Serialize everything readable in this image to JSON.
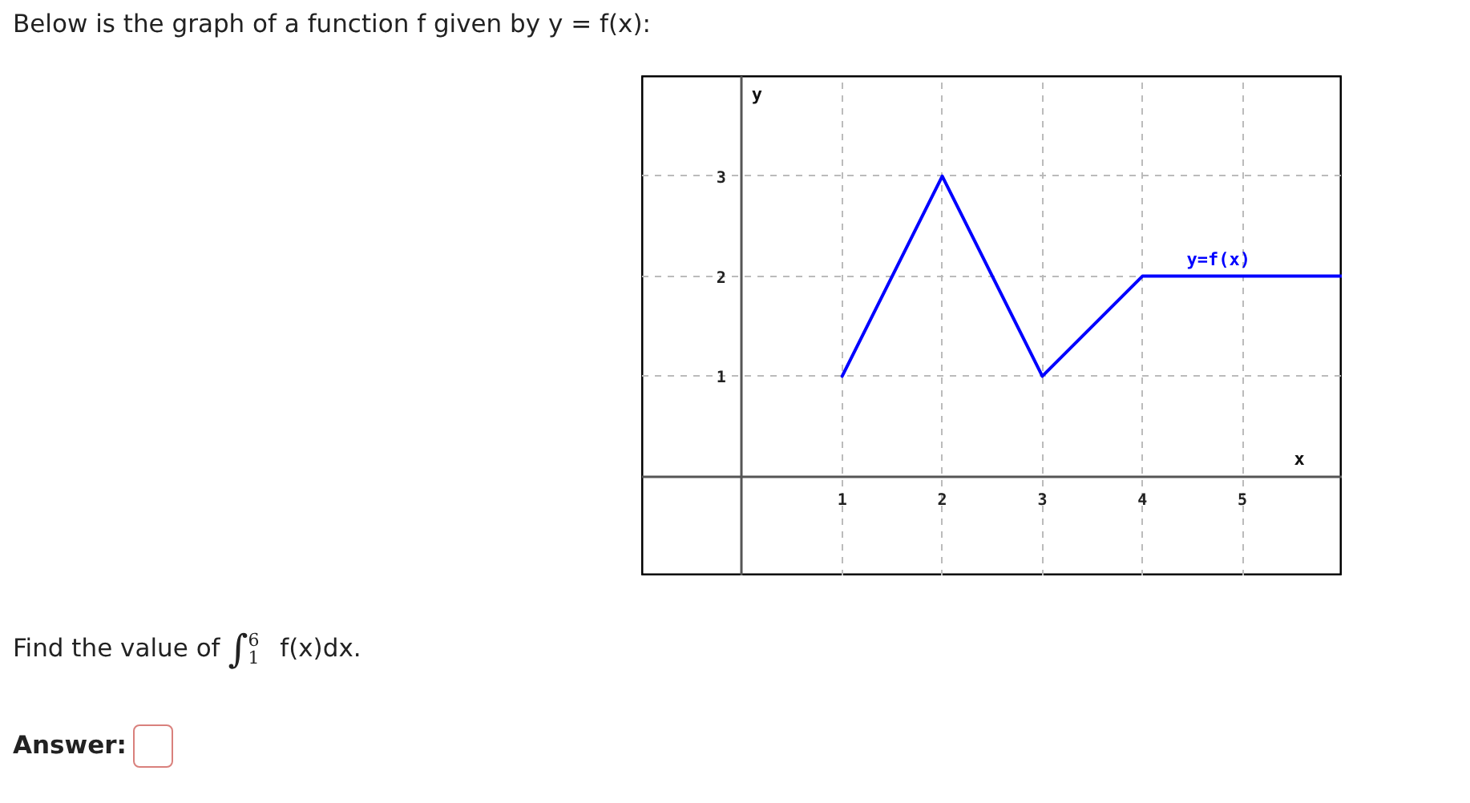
{
  "chart_data": {
    "type": "line",
    "title": "Below is the graph of a function f given by y = f(x):",
    "xlabel": "x",
    "ylabel": "y",
    "annotations": [
      "Find the value of ∫$_{1}$$^{6}$ f(x)dx.",
      "Answer:"
    ],
    "x": [
      1,
      2,
      3,
      4,
      6
    ],
    "series": [
      {
        "name": "y=f(x)",
        "color": "#0000ff",
        "values": [
          1,
          3,
          1,
          2,
          2
        ]
      }
    ],
    "xlim": [
      -1,
      6
    ],
    "ylim": [
      -1,
      4
    ],
    "xticks": [
      1,
      2,
      3,
      4,
      5
    ],
    "yticks": [
      1,
      2,
      3
    ],
    "grid": true,
    "line_style": "solid"
  }
}
